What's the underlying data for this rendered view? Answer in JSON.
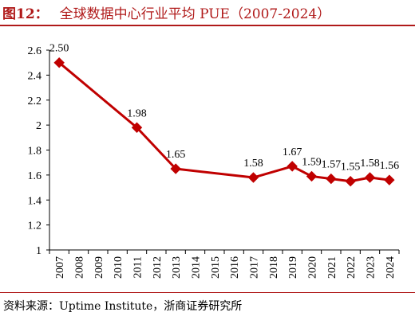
{
  "figure": {
    "label": "图12：",
    "title": "全球数据中心行业平均 PUE（2007-2024）",
    "source": "资料来源：Uptime Institute，浙商证券研究所",
    "accent_color": "#b01a1a",
    "series_color": "#c00000"
  },
  "chart_data": {
    "type": "line",
    "title": "全球数据中心行业平均 PUE（2007-2024）",
    "xlabel": "",
    "ylabel": "",
    "x": [
      "2007",
      "2008",
      "2009",
      "2010",
      "2011",
      "2012",
      "2013",
      "2014",
      "2015",
      "2016",
      "2017",
      "2018",
      "2019",
      "2020",
      "2021",
      "2022",
      "2023",
      "2024"
    ],
    "y_ticks": [
      "1",
      "1.2",
      "1.4",
      "1.6",
      "1.8",
      "2",
      "2.2",
      "2.4",
      "2.6"
    ],
    "ylim": [
      1,
      2.6
    ],
    "grid": false,
    "legend": "none",
    "marker": "diamond",
    "series": [
      {
        "points": [
          {
            "x": "2007",
            "y": 2.5,
            "label": "2.50"
          },
          {
            "x": "2011",
            "y": 1.98,
            "label": "1.98"
          },
          {
            "x": "2013",
            "y": 1.65,
            "label": "1.65"
          },
          {
            "x": "2017",
            "y": 1.58,
            "label": "1.58"
          },
          {
            "x": "2019",
            "y": 1.67,
            "label": "1.67"
          },
          {
            "x": "2020",
            "y": 1.59,
            "label": "1.59"
          },
          {
            "x": "2021",
            "y": 1.57,
            "label": "1.57"
          },
          {
            "x": "2022",
            "y": 1.55,
            "label": "1.55"
          },
          {
            "x": "2023",
            "y": 1.58,
            "label": "1.58"
          },
          {
            "x": "2024",
            "y": 1.56,
            "label": "1.56"
          }
        ]
      }
    ]
  }
}
